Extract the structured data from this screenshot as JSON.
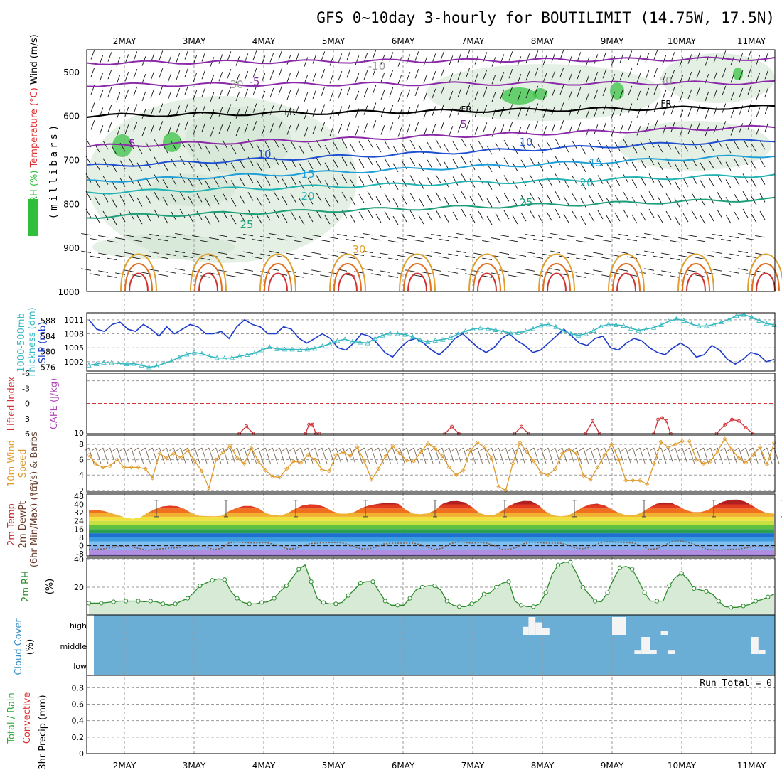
{
  "title": "GFS 0~10day 3-hourly for BOUTILIMIT (14.75W, 17.5N)",
  "days": [
    "2MAY",
    "3MAY",
    "4MAY",
    "5MAY",
    "6MAY",
    "7MAY",
    "8MAY",
    "9MAY",
    "10MAY",
    "11MAY"
  ],
  "colors": {
    "frame": "#000000",
    "grid": "#9a9a9a",
    "rh_fill": "#2fbf3a",
    "cloud_bg": "#6aaed6",
    "slp": "#1e3cc8",
    "thickness": "#35b8c0",
    "lifted_index": "#d0343a",
    "wind_speed": "#e09a2a",
    "barbs": "#7a6a5a",
    "rh2m": "#2c8c2c",
    "dewpoint": "#7a5a50"
  },
  "chart_data": [
    {
      "type": "heatmap",
      "name": "upper-air",
      "ylabel_lines": [
        "Wind (m/s)",
        "Temperature (°C)",
        "RH (%)"
      ],
      "yaxis_title": "(millibars)",
      "yticks": [
        500,
        600,
        700,
        800,
        900,
        1000
      ],
      "ylim": [
        1000,
        450
      ],
      "contour_labels": [
        "-10",
        "-5",
        "FR",
        "-5",
        "10",
        "15",
        "20",
        "25",
        "25",
        "30",
        "10",
        "15",
        "20",
        "30",
        "50",
        "FR"
      ],
      "isotherms": [
        {
          "label": "-10",
          "p_start": 480,
          "p_end": 470
        },
        {
          "label": "-5",
          "p_start": 530,
          "p_end": 525
        },
        {
          "label": "FR",
          "p_start": 600,
          "p_end": 580
        },
        {
          "label": "5",
          "p_start": 670,
          "p_end": 625
        },
        {
          "label": "10",
          "p_start": 715,
          "p_end": 655
        },
        {
          "label": "15",
          "p_start": 750,
          "p_end": 690
        },
        {
          "label": "20",
          "p_start": 775,
          "p_end": 735
        },
        {
          "label": "25",
          "p_start": 830,
          "p_end": 790
        }
      ]
    },
    {
      "type": "line",
      "name": "slp-thickness",
      "ylabel_lines": [
        "1000-500mb",
        "Thickness (dm)",
        "SLP (mb)"
      ],
      "yticks_left": [
        576,
        580,
        584,
        588
      ],
      "yticks_right": [
        1002,
        1005,
        1008,
        1011
      ],
      "ylim_left": [
        575,
        590
      ],
      "ylim_right": [
        1000,
        1012.5
      ],
      "series": [
        {
          "name": "SLP (mb)",
          "axis": "right",
          "values": [
            1011,
            1009,
            1008.5,
            1010,
            1010.5,
            1009,
            1008.5,
            1010,
            1009,
            1007.5,
            1009.5,
            1008,
            1009,
            1010,
            1009.5,
            1008,
            1008,
            1008.5,
            1007,
            1009.5,
            1011,
            1010,
            1009.5,
            1008,
            1008,
            1009.5,
            1009,
            1007,
            1006,
            1007,
            1008,
            1007,
            1005,
            1004.5,
            1006,
            1008,
            1007.5,
            1006,
            1004,
            1003,
            1005,
            1006.5,
            1007,
            1006,
            1004.5,
            1003.5,
            1005,
            1007,
            1008,
            1006.5,
            1005,
            1004,
            1005,
            1007,
            1008,
            1006.5,
            1005.5,
            1004,
            1004.5,
            1006,
            1007.5,
            1009,
            1007.5,
            1006,
            1005.5,
            1007,
            1007.5,
            1005,
            1004.5,
            1006,
            1007,
            1006.5,
            1005,
            1004,
            1003.5,
            1005,
            1006,
            1005,
            1003,
            1003.5,
            1005.5,
            1004.5,
            1002.5,
            1001.5,
            1002.5,
            1004,
            1003.5,
            1002,
            1002.5
          ]
        },
        {
          "name": "1000-500mb Thickness (dm)",
          "axis": "left",
          "values": [
            576.5,
            576.8,
            577.2,
            577.1,
            577.0,
            576.8,
            576.9,
            576.5,
            576.0,
            576.3,
            577.0,
            577.6,
            578.6,
            579.3,
            579.8,
            579.5,
            578.8,
            578.4,
            578.3,
            578.4,
            578.8,
            579.2,
            579.6,
            580.4,
            581.2,
            580.7,
            580.6,
            580.6,
            580.5,
            580.6,
            580.8,
            581.4,
            582.0,
            582.8,
            583.2,
            582.6,
            582.4,
            582.2,
            583.4,
            584.2,
            584.8,
            584.6,
            584.4,
            583.8,
            583.0,
            582.5,
            582.9,
            583.1,
            583.6,
            584.5,
            585.3,
            585.8,
            586.1,
            585.9,
            585.6,
            585.2,
            584.8,
            584.9,
            585.3,
            585.9,
            586.8,
            587.0,
            586.4,
            585.3,
            584.6,
            584.2,
            584.6,
            585.4,
            586.5,
            587.0,
            586.9,
            586.7,
            586.0,
            585.5,
            585.8,
            586.2,
            586.9,
            587.8,
            588.4,
            588.0,
            587.1,
            586.6,
            586.6,
            587.0,
            587.6,
            588.3,
            589.3,
            589.5,
            588.9,
            588.0,
            587.2,
            586.9
          ]
        }
      ]
    },
    {
      "type": "line",
      "name": "lifted-index-cape",
      "ylabel_lines": [
        "Lifted Index",
        "CAPE (J/kg)"
      ],
      "yticks": [
        -6,
        -3,
        0,
        3,
        6
      ],
      "yticks_right": [
        10
      ],
      "ylim": [
        -6,
        6
      ],
      "series": [
        {
          "name": "Lifted Index",
          "segments": [
            {
              "x": [
                1.65,
                1.75,
                1.85
              ],
              "y": [
                6,
                4.5,
                6
              ]
            },
            {
              "x": [
                2.6,
                2.65,
                2.7,
                2.75,
                2.8
              ],
              "y": [
                6,
                4.2,
                4.2,
                6,
                6
              ]
            },
            {
              "x": [
                4.6,
                4.7,
                4.8
              ],
              "y": [
                6,
                4.6,
                6
              ]
            },
            {
              "x": [
                5.6,
                5.7,
                5.8
              ],
              "y": [
                6,
                4.6,
                6
              ]
            },
            {
              "x": [
                6.62,
                6.72,
                6.82
              ],
              "y": [
                6,
                3.5,
                6
              ]
            },
            {
              "x": [
                7.6,
                7.66,
                7.72,
                7.78,
                7.84
              ],
              "y": [
                6,
                3.2,
                2.9,
                3.5,
                6
              ]
            },
            {
              "x": [
                8.5,
                8.62,
                8.72,
                8.82,
                8.92,
                9.02
              ],
              "y": [
                6,
                4.2,
                3.2,
                3.5,
                4.8,
                6
              ]
            },
            {
              "x": [
                9.5,
                9.6,
                9.7,
                9.8,
                9.9
              ],
              "y": [
                6,
                4.6,
                2.9,
                4.2,
                6
              ]
            }
          ]
        }
      ]
    },
    {
      "type": "line",
      "name": "wind-10m",
      "ylabel_lines": [
        "10m Wind",
        "Speed",
        "(m/s) & Barbs"
      ],
      "yticks": [
        2,
        4,
        6,
        8
      ],
      "ylim": [
        1.8,
        9.2
      ],
      "series": [
        {
          "name": "10m Wind Speed (m/s)",
          "values": [
            6.6,
            5.4,
            5.0,
            5.2,
            6.0,
            5.0,
            5.0,
            5.0,
            4.8,
            3.6,
            6.8,
            6.2,
            6.8,
            6.3,
            7.2,
            5.8,
            4.5,
            2.3,
            6.0,
            7.0,
            7.8,
            6.2,
            5.5,
            7.5,
            5.8,
            4.6,
            3.8,
            3.7,
            4.8,
            5.8,
            5.6,
            6.6,
            6.0,
            4.7,
            4.5,
            6.6,
            7.0,
            6.5,
            7.6,
            5.8,
            3.4,
            4.8,
            6.5,
            7.8,
            6.8,
            5.9,
            5.8,
            7.0,
            8.1,
            7.5,
            6.5,
            5.0,
            4.0,
            4.6,
            7.2,
            8.2,
            7.6,
            6.2,
            2.5,
            2.0,
            5.5,
            8.2,
            7.0,
            5.8,
            4.3,
            4.0,
            4.8,
            6.8,
            7.3,
            6.8,
            3.9,
            3.4,
            5.0,
            6.6,
            8.0,
            6.0,
            3.3,
            3.3,
            3.3,
            2.8,
            5.5,
            8.3,
            7.6,
            8.0,
            8.4,
            8.4,
            6.0,
            5.5,
            5.8,
            7.1,
            8.7,
            7.3,
            6.2,
            5.6,
            6.6,
            7.6,
            5.4,
            8.2
          ]
        }
      ]
    },
    {
      "type": "area",
      "name": "temperature-2m",
      "ylabel_lines": [
        "2m Temp",
        "2m DewPt",
        "(6hr Min/Max) (°C)"
      ],
      "yticks": [
        -8,
        0,
        8,
        16,
        24,
        32,
        40,
        48
      ],
      "ylim": [
        -10,
        50
      ],
      "series": [
        {
          "name": "2m Temp",
          "values": [
            34.5,
            34.6,
            33.6,
            31.6,
            29.5,
            27.2,
            26.0,
            27.5,
            32.0,
            35.5,
            38.0,
            38.7,
            38.2,
            35.5,
            31.2,
            28.9,
            28.6,
            28.5,
            28.9,
            33.4,
            36.5,
            38.4,
            38.4,
            36.4,
            31.6,
            29.5,
            29.1,
            31.5,
            35.8,
            39.0,
            40.1,
            39.7,
            37.5,
            33.5,
            31.0,
            31.0,
            32.5,
            36.5,
            39.0,
            40.3,
            41.2,
            41.5,
            40.5,
            34.8,
            31.0,
            30.5,
            31.2,
            34.5,
            40.5,
            43.0,
            43.3,
            42.0,
            37.5,
            31.5,
            29.5,
            29.8,
            33.5,
            38.5,
            41.8,
            43.4,
            43.2,
            39.5,
            33.0,
            29.3,
            28.5,
            29.2,
            33.0,
            37.2,
            40.0,
            40.7,
            39.0,
            35.0,
            31.5,
            29.5,
            29.4,
            32.0,
            36.6,
            40.5,
            41.8,
            41.5,
            38.5,
            34.5,
            32.5,
            32.5,
            34.5,
            39.0,
            42.5,
            44.5,
            44.7,
            42.8,
            39.0,
            34.5,
            31.5,
            31.0
          ]
        },
        {
          "name": "2m DewPt",
          "values": [
            -3.5,
            -3.5,
            -3.2,
            -2.0,
            -1.0,
            -0.5,
            -1.5,
            -3.0,
            -4.5,
            -3.6,
            -3.0,
            -2.4,
            -2.0,
            -1.0,
            -0.5,
            0.0,
            -1.6,
            -4.0,
            -2.4,
            2.5,
            3.5,
            3.0,
            2.6,
            2.6,
            3.0,
            1.5,
            -0.3,
            -3.4,
            -2.8,
            -0.2,
            2.0,
            2.4,
            2.8,
            3.0,
            3.0,
            1.6,
            -1.2,
            -3.2,
            -3.2,
            -1.2,
            1.6,
            2.4,
            2.4,
            2.4,
            2.4,
            1.0,
            -1.8,
            -3.8,
            -2.4,
            1.8,
            3.5,
            3.0,
            2.4,
            3.0,
            2.4,
            0.0,
            -3.6,
            -3.6,
            -1.8,
            1.8,
            3.6,
            3.0,
            2.4,
            2.4,
            2.4,
            0.6,
            -2.4,
            -3.0,
            -1.8,
            1.8,
            3.6,
            3.6,
            3.0,
            3.0,
            2.4,
            0.0,
            -3.6,
            -3.0,
            0.0,
            3.6,
            4.8,
            3.6,
            1.8,
            -1.2,
            -3.6,
            -4.2,
            -4.2,
            -3.6,
            -3.6,
            -2.4,
            -1.2,
            -0.6,
            -1.2,
            -1.8
          ]
        }
      ]
    },
    {
      "type": "area",
      "name": "rh-2m",
      "ylabel_lines": [
        "2m RH",
        "(%)"
      ],
      "yticks": [
        20,
        40
      ],
      "ylim": [
        0,
        41
      ],
      "series": [
        {
          "name": "2m RH",
          "values": [
            8.5,
            8.5,
            8.5,
            9.0,
            9.5,
            10,
            10,
            10,
            10,
            9.5,
            10,
            9.5,
            8,
            7,
            8,
            10,
            12,
            16,
            21,
            23,
            25,
            26,
            25.5,
            17,
            12,
            9,
            8,
            8,
            9,
            9.5,
            12,
            17,
            21,
            27,
            33,
            36,
            24,
            12,
            9,
            8,
            8,
            9,
            14,
            18,
            23,
            24,
            24,
            17,
            10,
            7,
            7,
            7,
            12,
            18,
            20,
            21,
            21,
            18,
            10,
            7,
            6,
            6,
            8,
            10,
            15,
            16,
            20,
            23,
            24,
            10,
            7,
            6,
            6,
            8,
            16,
            29,
            36,
            38,
            38,
            30,
            20,
            15,
            10,
            9.5,
            16,
            26,
            34,
            35,
            33,
            25,
            16,
            10,
            10,
            10,
            21,
            27,
            30,
            26,
            19,
            18,
            17,
            15,
            10,
            6,
            5.5,
            5.5,
            6.5,
            7.5,
            10,
            11,
            13,
            15
          ]
        }
      ]
    },
    {
      "type": "bar",
      "name": "cloud-cover",
      "ylabel_lines": [
        "Cloud Cover",
        "(%)"
      ],
      "yticks": [
        "high",
        "middle",
        "low"
      ],
      "layers": [
        {
          "name": "high",
          "blocks": [
            [
              5.72,
              5.8,
              0.45
            ],
            [
              5.8,
              5.9,
              1.0
            ],
            [
              5.9,
              6.0,
              0.7
            ],
            [
              6.0,
              6.1,
              0.4
            ],
            [
              6.0,
              6.08,
              0.3
            ],
            [
              7.0,
              7.2,
              1.0
            ],
            [
              7.7,
              7.8,
              0.2
            ]
          ]
        },
        {
          "name": "middle",
          "blocks": [
            [
              7.32,
              7.42,
              0.2
            ],
            [
              7.42,
              7.55,
              1.0
            ],
            [
              7.55,
              7.64,
              0.25
            ],
            [
              7.8,
              7.9,
              0.2
            ],
            [
              9.0,
              9.1,
              1.0
            ],
            [
              9.1,
              9.2,
              0.25
            ]
          ]
        },
        {
          "name": "low",
          "blocks": [
            [
              10.7,
              10.8,
              0.35
            ]
          ]
        }
      ]
    },
    {
      "type": "line",
      "name": "precip-3hr",
      "ylabel_lines": [
        "Total / Rain",
        "Convective",
        "3hr Precip (mm)"
      ],
      "yticks": [
        0,
        0.2,
        0.4,
        0.6,
        0.8
      ],
      "ylim": [
        0,
        0.95
      ],
      "annotation": "Run Total = 0",
      "series": []
    }
  ]
}
